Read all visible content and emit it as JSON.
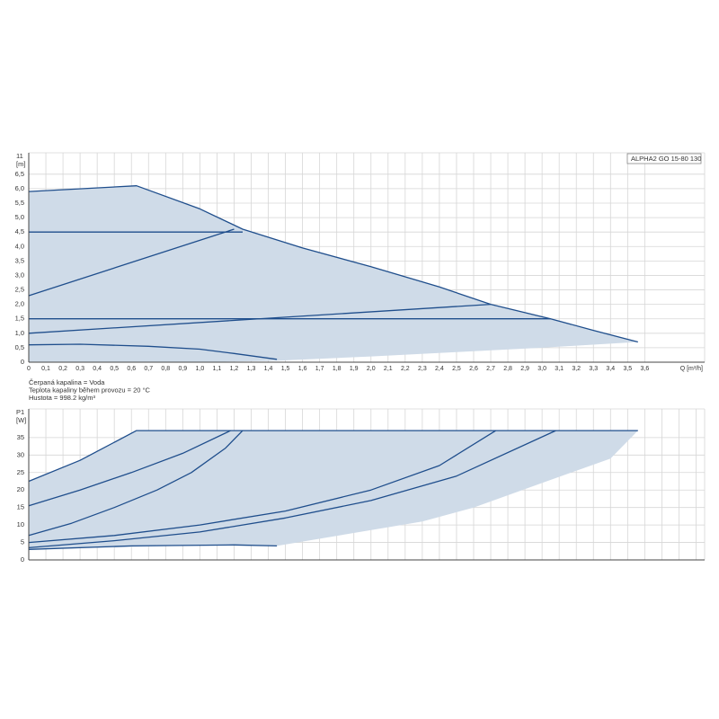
{
  "chart_data": [
    {
      "type": "line",
      "title": "ALPHA2 GO 15-80 130",
      "y_top_label": "11",
      "y_label": "[m]",
      "x_label": "Q [m³/h]",
      "notes": [
        "Čerpaná kapalina = Voda",
        "Teplota kapaliny během provozu = 20 °C",
        "Hustota = 998.2 kg/m³"
      ],
      "xlim": [
        0,
        3.95
      ],
      "ylim": [
        0,
        7.24
      ],
      "grid": true,
      "show_xtick_labels": true,
      "xticks": [
        0,
        {
          "value": 0.1,
          "label": "0,1"
        },
        {
          "value": 0.2,
          "label": "0,2"
        },
        {
          "value": 0.3,
          "label": "0,3"
        },
        {
          "value": 0.4,
          "label": "0,4"
        },
        {
          "value": 0.5,
          "label": "0,5"
        },
        {
          "value": 0.6,
          "label": "0,6"
        },
        {
          "value": 0.7,
          "label": "0,7"
        },
        {
          "value": 0.8,
          "label": "0,8"
        },
        {
          "value": 0.9,
          "label": "0,9"
        },
        {
          "value": 1,
          "label": "1,0"
        },
        {
          "value": 1.1,
          "label": "1,1"
        },
        {
          "value": 1.2,
          "label": "1,2"
        },
        {
          "value": 1.3,
          "label": "1,3"
        },
        {
          "value": 1.4,
          "label": "1,4"
        },
        {
          "value": 1.5,
          "label": "1,5"
        },
        {
          "value": 1.6,
          "label": "1,6"
        },
        {
          "value": 1.7,
          "label": "1,7"
        },
        {
          "value": 1.8,
          "label": "1,8"
        },
        {
          "value": 1.9,
          "label": "1,9"
        },
        {
          "value": 2,
          "label": "2,0"
        },
        {
          "value": 2.1,
          "label": "2,1"
        },
        {
          "value": 2.2,
          "label": "2,2"
        },
        {
          "value": 2.3,
          "label": "2,3"
        },
        {
          "value": 2.4,
          "label": "2,4"
        },
        {
          "value": 2.5,
          "label": "2,5"
        },
        {
          "value": 2.6,
          "label": "2,6"
        },
        {
          "value": 2.7,
          "label": "2,7"
        },
        {
          "value": 2.8,
          "label": "2,8"
        },
        {
          "value": 2.9,
          "label": "2,9"
        },
        {
          "value": 3,
          "label": "3,0"
        },
        {
          "value": 3.1,
          "label": "3,1"
        },
        {
          "value": 3.2,
          "label": "3,2"
        },
        {
          "value": 3.3,
          "label": "3,3"
        },
        {
          "value": 3.4,
          "label": "3,4"
        },
        {
          "value": 3.5,
          "label": "3,5"
        },
        {
          "value": 3.6,
          "label": "3,6"
        }
      ],
      "yticks": [
        0,
        {
          "value": 0.5,
          "label": "0,5"
        },
        {
          "value": 1,
          "label": "1,0"
        },
        {
          "value": 1.5,
          "label": "1,5"
        },
        {
          "value": 2,
          "label": "2,0"
        },
        {
          "value": 2.5,
          "label": "2,5"
        },
        {
          "value": 3,
          "label": "3,0"
        },
        {
          "value": 3.5,
          "label": "3,5"
        },
        {
          "value": 4,
          "label": "4,0"
        },
        {
          "value": 4.5,
          "label": "4,5"
        },
        {
          "value": 5,
          "label": "5,0"
        },
        {
          "value": 5.5,
          "label": "5,5"
        },
        {
          "value": 6,
          "label": "6,0"
        },
        {
          "value": 6.5,
          "label": "6,5"
        }
      ],
      "series": [
        {
          "color": "#cfdbe8",
          "fill": true,
          "x": [
            0,
            0.63,
            1.0,
            1.25,
            1.6,
            2.0,
            2.4,
            2.7,
            3.05,
            3.3,
            3.56,
            3.0,
            2.5,
            2.0,
            1.45,
            1.0,
            0
          ],
          "values": [
            5.9,
            6.1,
            5.3,
            4.6,
            3.95,
            3.3,
            2.6,
            2.0,
            1.5,
            1.1,
            0.7,
            0.5,
            0.35,
            0.2,
            0.05,
            0,
            0
          ]
        },
        {
          "color": "#1f4e8c",
          "x": [
            0,
            0.63,
            1.0,
            1.25,
            1.6,
            2.0,
            2.4,
            2.7,
            3.05,
            3.3,
            3.56
          ],
          "values": [
            5.9,
            6.1,
            5.3,
            4.6,
            3.95,
            3.3,
            2.6,
            2.0,
            1.5,
            1.1,
            0.7
          ]
        },
        {
          "color": "#1f4e8c",
          "x": [
            0,
            1.25
          ],
          "values": [
            4.5,
            4.5
          ]
        },
        {
          "color": "#1f4e8c",
          "x": [
            0,
            1.2
          ],
          "values": [
            2.3,
            4.6
          ]
        },
        {
          "color": "#1f4e8c",
          "x": [
            0,
            3.05
          ],
          "values": [
            1.5,
            1.5
          ]
        },
        {
          "color": "#1f4e8c",
          "x": [
            0,
            2.7
          ],
          "values": [
            1.0,
            2.0
          ]
        },
        {
          "color": "#1f4e8c",
          "x": [
            0,
            0.3,
            0.7,
            1.0,
            1.2,
            1.45
          ],
          "values": [
            0.6,
            0.62,
            0.55,
            0.45,
            0.3,
            0.1
          ]
        }
      ]
    },
    {
      "type": "line",
      "y_top_label": "P1",
      "y_label": "[W]",
      "xlim": [
        0,
        3.95
      ],
      "ylim": [
        0,
        43.2
      ],
      "grid": true,
      "show_xtick_labels": false,
      "xticks": [
        0,
        0.1,
        0.2,
        0.3,
        0.4,
        0.5,
        0.6,
        0.7,
        0.8,
        0.9,
        1,
        1.1,
        1.2,
        1.3,
        1.4,
        1.5,
        1.6,
        1.7,
        1.8,
        1.9,
        2,
        2.1,
        2.2,
        2.3,
        2.4,
        2.5,
        2.6,
        2.7,
        2.8,
        2.9,
        3,
        3.1,
        3.2,
        3.3,
        3.4,
        3.5,
        3.6,
        3.7,
        3.8,
        3.9
      ],
      "yticks": [
        0,
        5,
        10,
        15,
        20,
        25,
        30,
        35
      ],
      "series": [
        {
          "color": "#cfdbe8",
          "fill": true,
          "x": [
            0,
            0.3,
            0.63,
            3.56,
            3.4,
            3.0,
            2.6,
            2.3,
            1.45,
            1.0,
            0
          ],
          "values": [
            22.5,
            28.5,
            37,
            37,
            29,
            22,
            15,
            11,
            4,
            4.2,
            3
          ]
        },
        {
          "color": "#1f4e8c",
          "x": [
            0,
            0.3,
            0.63,
            3.56
          ],
          "values": [
            22.5,
            28.5,
            37,
            37
          ]
        },
        {
          "color": "#1f4e8c",
          "x": [
            0,
            0.3,
            0.6,
            0.9,
            1.18
          ],
          "values": [
            15.5,
            20,
            25,
            30.5,
            37
          ]
        },
        {
          "color": "#1f4e8c",
          "x": [
            0,
            0.25,
            0.5,
            0.75,
            0.95,
            1.15,
            1.25
          ],
          "values": [
            7,
            10.5,
            15,
            20,
            25,
            32,
            37
          ]
        },
        {
          "color": "#1f4e8c",
          "x": [
            0,
            0.5,
            1.0,
            1.5,
            2.0,
            2.4,
            2.73
          ],
          "values": [
            5,
            7,
            10,
            14,
            20,
            27,
            37
          ]
        },
        {
          "color": "#1f4e8c",
          "x": [
            0,
            0.5,
            1.0,
            1.5,
            2.0,
            2.5,
            3.08
          ],
          "values": [
            3.5,
            5.5,
            8,
            12,
            17,
            24,
            37
          ]
        },
        {
          "color": "#1f4e8c",
          "x": [
            0,
            0.6,
            1.2,
            1.45
          ],
          "values": [
            3,
            4,
            4.3,
            4
          ]
        }
      ]
    }
  ]
}
